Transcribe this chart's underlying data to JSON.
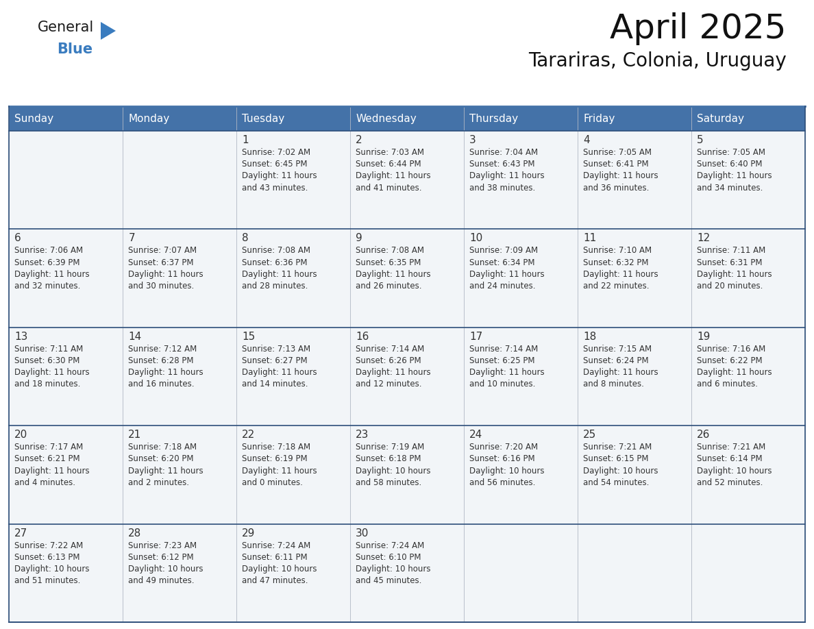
{
  "title": "April 2025",
  "subtitle": "Tarariras, Colonia, Uruguay",
  "header_bg": "#4472a8",
  "header_text_color": "#ffffff",
  "cell_bg": "#f2f5f8",
  "cell_bg_white": "#ffffff",
  "row_separator_color": "#2e4f7a",
  "col_separator_color": "#cccccc",
  "text_color": "#333333",
  "days_of_week": [
    "Sunday",
    "Monday",
    "Tuesday",
    "Wednesday",
    "Thursday",
    "Friday",
    "Saturday"
  ],
  "calendar_data": [
    [
      {
        "day": "",
        "info": ""
      },
      {
        "day": "",
        "info": ""
      },
      {
        "day": "1",
        "info": "Sunrise: 7:02 AM\nSunset: 6:45 PM\nDaylight: 11 hours\nand 43 minutes."
      },
      {
        "day": "2",
        "info": "Sunrise: 7:03 AM\nSunset: 6:44 PM\nDaylight: 11 hours\nand 41 minutes."
      },
      {
        "day": "3",
        "info": "Sunrise: 7:04 AM\nSunset: 6:43 PM\nDaylight: 11 hours\nand 38 minutes."
      },
      {
        "day": "4",
        "info": "Sunrise: 7:05 AM\nSunset: 6:41 PM\nDaylight: 11 hours\nand 36 minutes."
      },
      {
        "day": "5",
        "info": "Sunrise: 7:05 AM\nSunset: 6:40 PM\nDaylight: 11 hours\nand 34 minutes."
      }
    ],
    [
      {
        "day": "6",
        "info": "Sunrise: 7:06 AM\nSunset: 6:39 PM\nDaylight: 11 hours\nand 32 minutes."
      },
      {
        "day": "7",
        "info": "Sunrise: 7:07 AM\nSunset: 6:37 PM\nDaylight: 11 hours\nand 30 minutes."
      },
      {
        "day": "8",
        "info": "Sunrise: 7:08 AM\nSunset: 6:36 PM\nDaylight: 11 hours\nand 28 minutes."
      },
      {
        "day": "9",
        "info": "Sunrise: 7:08 AM\nSunset: 6:35 PM\nDaylight: 11 hours\nand 26 minutes."
      },
      {
        "day": "10",
        "info": "Sunrise: 7:09 AM\nSunset: 6:34 PM\nDaylight: 11 hours\nand 24 minutes."
      },
      {
        "day": "11",
        "info": "Sunrise: 7:10 AM\nSunset: 6:32 PM\nDaylight: 11 hours\nand 22 minutes."
      },
      {
        "day": "12",
        "info": "Sunrise: 7:11 AM\nSunset: 6:31 PM\nDaylight: 11 hours\nand 20 minutes."
      }
    ],
    [
      {
        "day": "13",
        "info": "Sunrise: 7:11 AM\nSunset: 6:30 PM\nDaylight: 11 hours\nand 18 minutes."
      },
      {
        "day": "14",
        "info": "Sunrise: 7:12 AM\nSunset: 6:28 PM\nDaylight: 11 hours\nand 16 minutes."
      },
      {
        "day": "15",
        "info": "Sunrise: 7:13 AM\nSunset: 6:27 PM\nDaylight: 11 hours\nand 14 minutes."
      },
      {
        "day": "16",
        "info": "Sunrise: 7:14 AM\nSunset: 6:26 PM\nDaylight: 11 hours\nand 12 minutes."
      },
      {
        "day": "17",
        "info": "Sunrise: 7:14 AM\nSunset: 6:25 PM\nDaylight: 11 hours\nand 10 minutes."
      },
      {
        "day": "18",
        "info": "Sunrise: 7:15 AM\nSunset: 6:24 PM\nDaylight: 11 hours\nand 8 minutes."
      },
      {
        "day": "19",
        "info": "Sunrise: 7:16 AM\nSunset: 6:22 PM\nDaylight: 11 hours\nand 6 minutes."
      }
    ],
    [
      {
        "day": "20",
        "info": "Sunrise: 7:17 AM\nSunset: 6:21 PM\nDaylight: 11 hours\nand 4 minutes."
      },
      {
        "day": "21",
        "info": "Sunrise: 7:18 AM\nSunset: 6:20 PM\nDaylight: 11 hours\nand 2 minutes."
      },
      {
        "day": "22",
        "info": "Sunrise: 7:18 AM\nSunset: 6:19 PM\nDaylight: 11 hours\nand 0 minutes."
      },
      {
        "day": "23",
        "info": "Sunrise: 7:19 AM\nSunset: 6:18 PM\nDaylight: 10 hours\nand 58 minutes."
      },
      {
        "day": "24",
        "info": "Sunrise: 7:20 AM\nSunset: 6:16 PM\nDaylight: 10 hours\nand 56 minutes."
      },
      {
        "day": "25",
        "info": "Sunrise: 7:21 AM\nSunset: 6:15 PM\nDaylight: 10 hours\nand 54 minutes."
      },
      {
        "day": "26",
        "info": "Sunrise: 7:21 AM\nSunset: 6:14 PM\nDaylight: 10 hours\nand 52 minutes."
      }
    ],
    [
      {
        "day": "27",
        "info": "Sunrise: 7:22 AM\nSunset: 6:13 PM\nDaylight: 10 hours\nand 51 minutes."
      },
      {
        "day": "28",
        "info": "Sunrise: 7:23 AM\nSunset: 6:12 PM\nDaylight: 10 hours\nand 49 minutes."
      },
      {
        "day": "29",
        "info": "Sunrise: 7:24 AM\nSunset: 6:11 PM\nDaylight: 10 hours\nand 47 minutes."
      },
      {
        "day": "30",
        "info": "Sunrise: 7:24 AM\nSunset: 6:10 PM\nDaylight: 10 hours\nand 45 minutes."
      },
      {
        "day": "",
        "info": ""
      },
      {
        "day": "",
        "info": ""
      },
      {
        "day": "",
        "info": ""
      }
    ]
  ],
  "logo_triangle_color": "#3a7cbf",
  "logo_blue_color": "#3a7cbf",
  "title_fontsize": 36,
  "subtitle_fontsize": 20,
  "header_fontsize": 11,
  "day_num_fontsize": 11,
  "info_fontsize": 8.5
}
